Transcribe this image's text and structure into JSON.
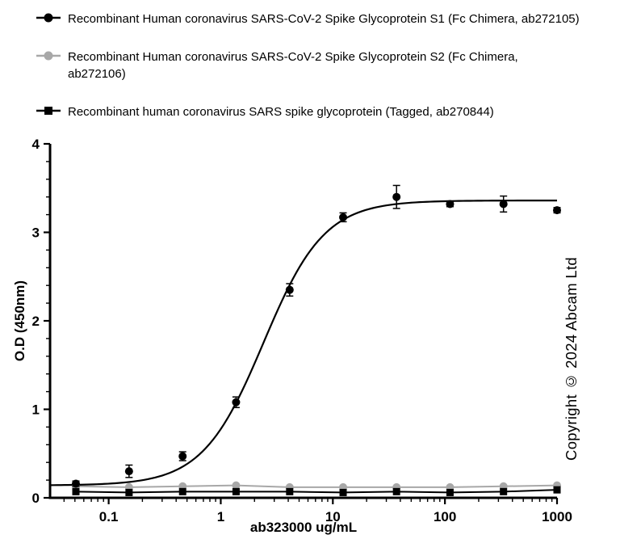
{
  "legend": {
    "items": [
      {
        "label": "Recombinant Human coronavirus SARS-CoV-2 Spike Glycoprotein S1 (Fc Chimera, ab272105)",
        "marker": "circle",
        "color": "#000000"
      },
      {
        "label": "Recombinant Human coronavirus SARS-CoV-2 Spike Glycoprotein S2 (Fc Chimera,\nab272106)",
        "marker": "circle",
        "color": "#a8a8a8"
      },
      {
        "label": "Recombinant human coronavirus SARS spike glycoprotein (Tagged, ab270844)",
        "marker": "square",
        "color": "#000000"
      }
    ]
  },
  "chart_data": {
    "type": "scatter",
    "title": "",
    "xlabel": "ab323000 ug/mL",
    "ylabel": "O.D (450nm)",
    "x_scale": "log",
    "xlim": [
      0.03,
      1000
    ],
    "ylim": [
      0,
      4
    ],
    "x_ticks": [
      0.1,
      1,
      10,
      100,
      1000
    ],
    "x_tick_labels": [
      "0.1",
      "1",
      "10",
      "100",
      "1000"
    ],
    "y_ticks": [
      0,
      1,
      2,
      3,
      4
    ],
    "y_tick_labels": [
      "0",
      "1",
      "2",
      "3",
      "4"
    ],
    "legend_position": "top-left",
    "grid": false,
    "x": [
      0.051,
      0.152,
      0.457,
      1.37,
      4.12,
      12.35,
      37,
      111,
      333,
      1000
    ],
    "series": [
      {
        "name": "Recombinant Human coronavirus SARS-CoV-2 Spike Glycoprotein S1 (Fc Chimera, ab272105)",
        "marker": "circle",
        "color": "#000000",
        "values": [
          0.16,
          0.3,
          0.47,
          1.08,
          2.35,
          3.17,
          3.4,
          3.32,
          3.32,
          3.25
        ],
        "errors": [
          0.03,
          0.07,
          0.05,
          0.06,
          0.07,
          0.05,
          0.13,
          0.03,
          0.09,
          0.03
        ],
        "fit": {
          "bottom": 0.14,
          "top": 3.36,
          "ec50": 2.4,
          "hill": 1.6
        }
      },
      {
        "name": "Recombinant Human coronavirus SARS-CoV-2 Spike Glycoprotein S2 (Fc Chimera, ab272106)",
        "marker": "circle",
        "color": "#a8a8a8",
        "values": [
          0.13,
          0.12,
          0.13,
          0.14,
          0.12,
          0.12,
          0.12,
          0.12,
          0.13,
          0.14
        ],
        "errors": [
          0,
          0,
          0,
          0,
          0,
          0,
          0,
          0,
          0,
          0
        ]
      },
      {
        "name": "Recombinant human coronavirus SARS spike glycoprotein (Tagged, ab270844)",
        "marker": "square",
        "color": "#000000",
        "values": [
          0.07,
          0.06,
          0.07,
          0.07,
          0.07,
          0.06,
          0.07,
          0.06,
          0.07,
          0.09
        ],
        "errors": [
          0,
          0,
          0,
          0,
          0,
          0,
          0,
          0,
          0,
          0
        ]
      }
    ]
  },
  "copyright": "Copyright © 2024 Abcam Ltd"
}
